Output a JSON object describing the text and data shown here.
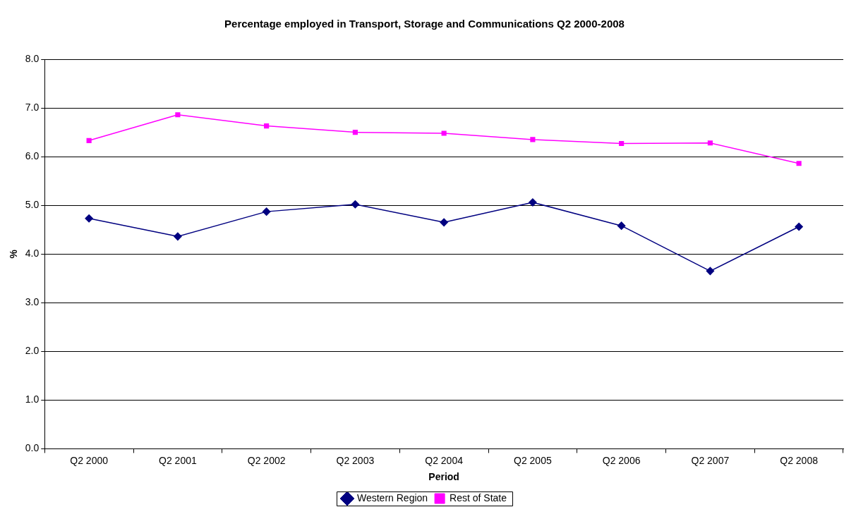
{
  "chart_data": {
    "type": "line",
    "title": "Percentage employed in Transport, Storage and Communications Q2 2000-2008",
    "xlabel": "Period",
    "ylabel": "%",
    "categories": [
      "Q2 2000",
      "Q2 2001",
      "Q2 2002",
      "Q2 2003",
      "Q2 2004",
      "Q2 2005",
      "Q2 2006",
      "Q2 2007",
      "Q2 2008"
    ],
    "series": [
      {
        "name": "Western Region",
        "color": "#000080",
        "marker": "diamond",
        "values": [
          4.73,
          4.36,
          4.87,
          5.02,
          4.65,
          5.06,
          4.58,
          3.65,
          4.56
        ]
      },
      {
        "name": "Rest of State",
        "color": "#ff00ff",
        "marker": "square",
        "values": [
          6.33,
          6.86,
          6.63,
          6.5,
          6.48,
          6.35,
          6.27,
          6.28,
          5.86
        ]
      }
    ],
    "ylim": [
      0,
      8
    ],
    "yticks": [
      {
        "value": 0,
        "label": "0.0"
      },
      {
        "value": 1,
        "label": "1.0"
      },
      {
        "value": 2,
        "label": "2.0"
      },
      {
        "value": 3,
        "label": "3.0"
      },
      {
        "value": 4,
        "label": "4.0"
      },
      {
        "value": 5,
        "label": "5.0"
      },
      {
        "value": 6,
        "label": "6.0"
      },
      {
        "value": 7,
        "label": "7.0"
      },
      {
        "value": 8,
        "label": "8.0"
      }
    ],
    "grid": "y",
    "legend": "bottom",
    "line_style": "solid"
  }
}
